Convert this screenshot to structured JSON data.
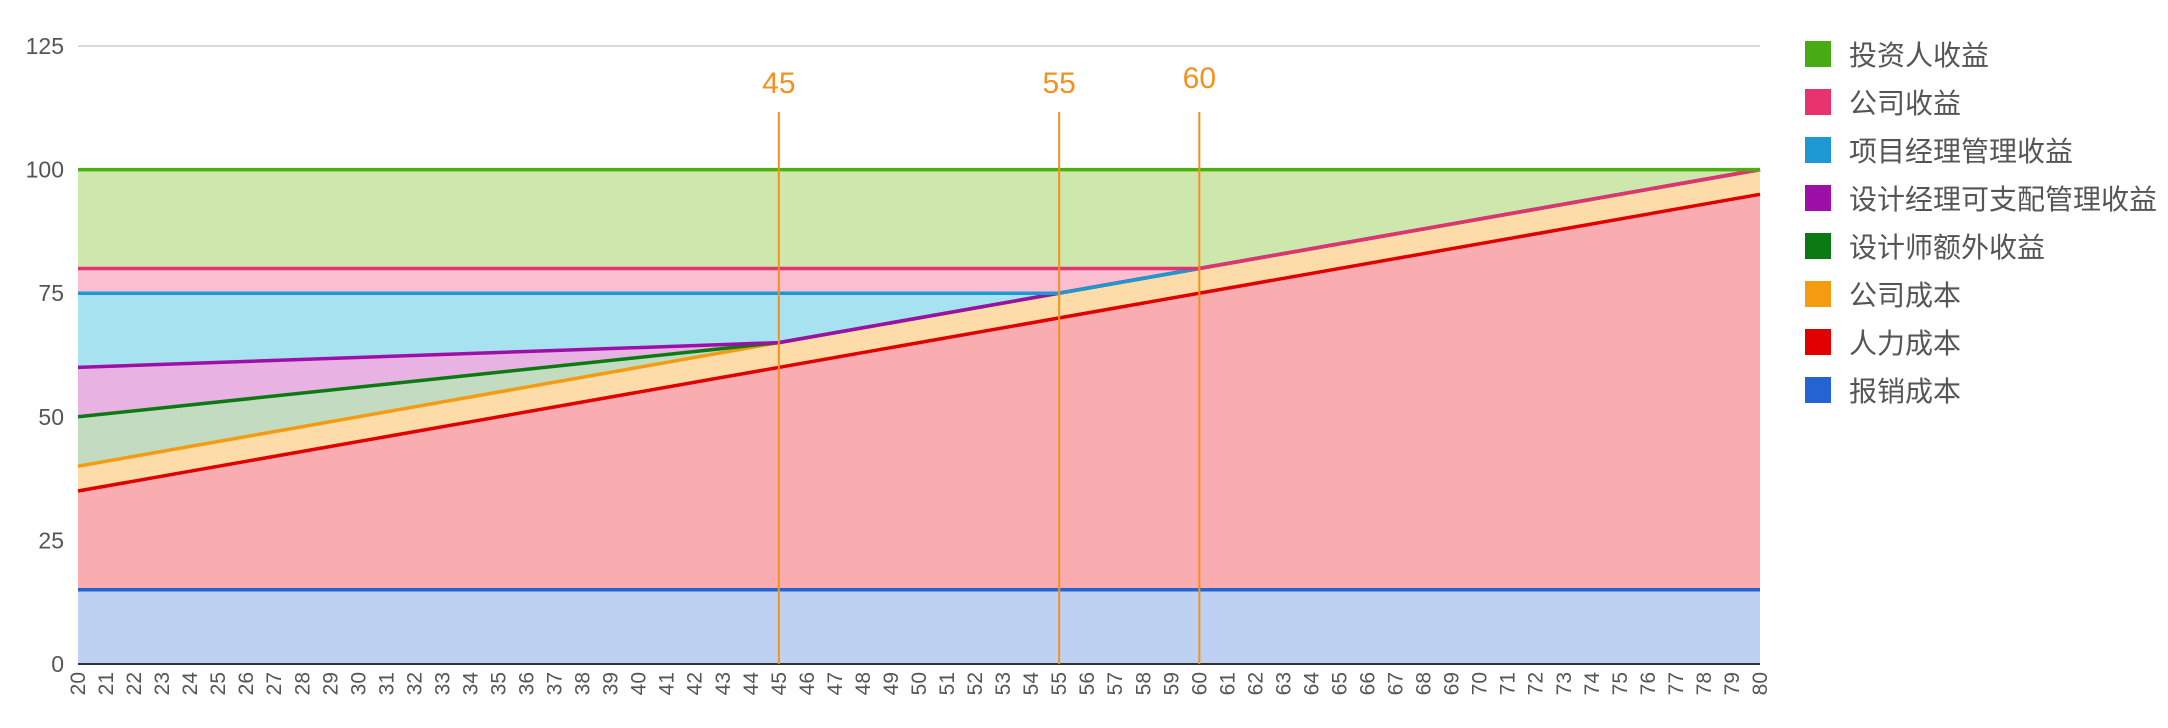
{
  "chart_data": {
    "type": "area",
    "stacked": true,
    "title": "",
    "xlabel": "",
    "ylabel": "",
    "xlim": [
      20,
      80
    ],
    "ylim": [
      0,
      125
    ],
    "y_ticks": [
      0,
      25,
      50,
      75,
      100,
      125
    ],
    "grid": true,
    "legend_position": "right",
    "x_labels_rotated": true,
    "series": [
      {
        "name": "报销成本",
        "color": "#2563d3",
        "fill": "#bfd1f2",
        "points": [
          [
            20,
            15
          ],
          [
            80,
            15
          ]
        ]
      },
      {
        "name": "人力成本",
        "color": "#e00000",
        "fill": "#f9adb0",
        "points": [
          [
            20,
            35
          ],
          [
            80,
            95
          ]
        ]
      },
      {
        "name": "公司成本",
        "color": "#f39c12",
        "fill": "#fddcaa",
        "points": [
          [
            20,
            40
          ],
          [
            80,
            100
          ]
        ]
      },
      {
        "name": "设计师额外收益",
        "color": "#0c7a12",
        "fill": "#c3dcc1",
        "points": [
          [
            20,
            50
          ],
          [
            45,
            65
          ],
          [
            80,
            100
          ]
        ]
      },
      {
        "name": "设计经理可支配管理收益",
        "color": "#9c10a8",
        "fill": "#e8b2e3",
        "points": [
          [
            20,
            60
          ],
          [
            45,
            65
          ],
          [
            80,
            100
          ]
        ]
      },
      {
        "name": "项目经理管理收益",
        "color": "#1d98d3",
        "fill": "#a6e2ef",
        "points": [
          [
            20,
            75
          ],
          [
            55,
            75
          ],
          [
            80,
            100
          ]
        ]
      },
      {
        "name": "公司收益",
        "color": "#e2336d",
        "fill": "#fbbdd0",
        "points": [
          [
            20,
            80
          ],
          [
            60,
            80
          ],
          [
            80,
            100
          ]
        ]
      },
      {
        "name": "投资人收益",
        "color": "#4caf0c",
        "fill": "#cde7ad",
        "points": [
          [
            20,
            100
          ],
          [
            80,
            100
          ]
        ]
      }
    ],
    "annotations": [
      {
        "x": 45,
        "label": "45",
        "color": "#f4901c"
      },
      {
        "x": 55,
        "label": "55",
        "color": "#f4901c"
      },
      {
        "x": 60,
        "label": "60",
        "color": "#f4901c"
      }
    ]
  },
  "legend": [
    {
      "label": "投资人收益",
      "color": "#49ab14"
    },
    {
      "label": "公司收益",
      "color": "#e8336e"
    },
    {
      "label": "项目经理管理收益",
      "color": "#1d98d3"
    },
    {
      "label": "设计经理可支配管理收益",
      "color": "#9c10a8"
    },
    {
      "label": "设计师额外收益",
      "color": "#0c7a12"
    },
    {
      "label": "公司成本",
      "color": "#f39c12"
    },
    {
      "label": "人力成本",
      "color": "#e00000"
    },
    {
      "label": "报销成本",
      "color": "#2563d3"
    }
  ]
}
